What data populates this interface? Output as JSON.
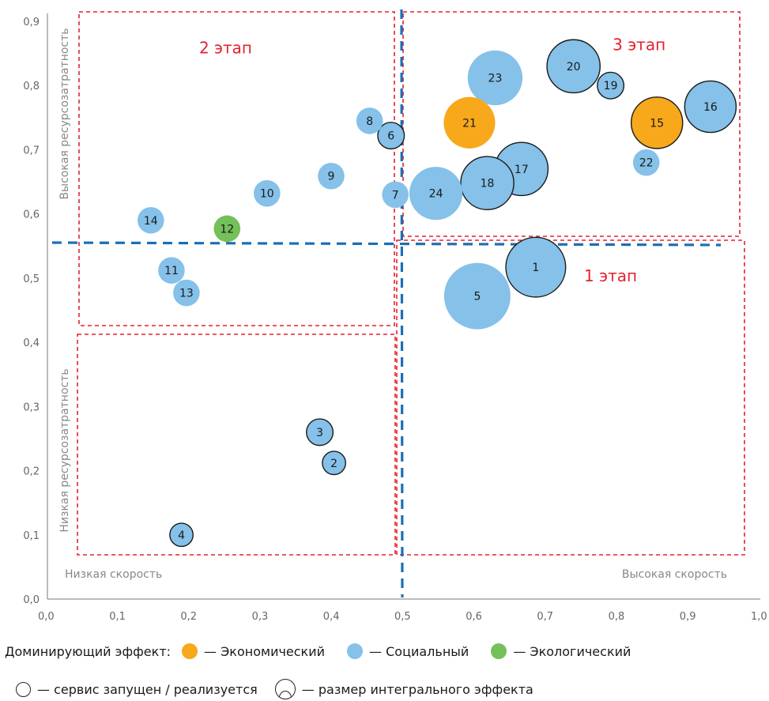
{
  "chart_data": {
    "type": "scatter",
    "title": "",
    "xlabel": "",
    "ylabel": "",
    "xlim": [
      0.0,
      1.0
    ],
    "ylim": [
      0.0,
      0.9
    ],
    "x_ticks": [
      "0,0",
      "0,1",
      "0,2",
      "0,3",
      "0,4",
      "0,5",
      "0,6",
      "0,7",
      "0,8",
      "0,9",
      "1,0"
    ],
    "y_ticks": [
      "0,0",
      "0,1",
      "0,2",
      "0,3",
      "0,4",
      "0,5",
      "0,6",
      "0,7",
      "0,8",
      "0,9"
    ],
    "grid": false,
    "colors": {
      "economic": "#f7a81b",
      "social": "#85c1e9",
      "ecological": "#74c05a",
      "stage_box": "#e5202e",
      "threshold": "#1a6fb5"
    },
    "annotations": {
      "y_high": "Высокая ресурсозатратность",
      "y_low": "Низкая ресурсозатратность",
      "x_low": "Низкая скорость",
      "x_high": "Высокая скорость"
    },
    "thresholds": {
      "x": 0.5,
      "y": 0.555
    },
    "stages": [
      {
        "label": "1 этап",
        "x": [
          0.5,
          1.0
        ],
        "y": [
          0.07,
          0.555
        ]
      },
      {
        "label": "2 этап",
        "x": [
          0.05,
          0.5
        ],
        "y": [
          0.43,
          0.9
        ]
      },
      {
        "label": "3 этап",
        "x": [
          0.5,
          1.0
        ],
        "y": [
          0.56,
          0.9
        ]
      }
    ],
    "points": [
      {
        "label": "1",
        "x": 0.685,
        "y": 0.517,
        "size": 3.6,
        "effect": "social",
        "launched": true
      },
      {
        "label": "2",
        "x": 0.402,
        "y": 0.212,
        "size": 1.4,
        "effect": "social",
        "launched": true
      },
      {
        "label": "3",
        "x": 0.382,
        "y": 0.26,
        "size": 1.6,
        "effect": "social",
        "launched": true
      },
      {
        "label": "4",
        "x": 0.188,
        "y": 0.1,
        "size": 1.4,
        "effect": "social",
        "launched": true
      },
      {
        "label": "5",
        "x": 0.603,
        "y": 0.472,
        "size": 4.0,
        "effect": "social",
        "launched": false
      },
      {
        "label": "6",
        "x": 0.482,
        "y": 0.722,
        "size": 1.6,
        "effect": "social",
        "launched": true
      },
      {
        "label": "7",
        "x": 0.488,
        "y": 0.63,
        "size": 1.6,
        "effect": "social",
        "launched": false
      },
      {
        "label": "8",
        "x": 0.452,
        "y": 0.745,
        "size": 1.6,
        "effect": "social",
        "launched": false
      },
      {
        "label": "9",
        "x": 0.398,
        "y": 0.659,
        "size": 1.6,
        "effect": "social",
        "launched": false
      },
      {
        "label": "10",
        "x": 0.308,
        "y": 0.632,
        "size": 1.6,
        "effect": "social",
        "launched": false
      },
      {
        "label": "11",
        "x": 0.174,
        "y": 0.512,
        "size": 1.6,
        "effect": "social",
        "launched": false
      },
      {
        "label": "12",
        "x": 0.252,
        "y": 0.577,
        "size": 1.6,
        "effect": "ecological",
        "launched": false
      },
      {
        "label": "13",
        "x": 0.195,
        "y": 0.477,
        "size": 1.6,
        "effect": "social",
        "launched": false
      },
      {
        "label": "14",
        "x": 0.145,
        "y": 0.59,
        "size": 1.6,
        "effect": "social",
        "launched": false
      },
      {
        "label": "15",
        "x": 0.855,
        "y": 0.742,
        "size": 3.1,
        "effect": "economic",
        "launched": true
      },
      {
        "label": "16",
        "x": 0.93,
        "y": 0.767,
        "size": 3.1,
        "effect": "social",
        "launched": true
      },
      {
        "label": "17",
        "x": 0.665,
        "y": 0.67,
        "size": 3.2,
        "effect": "social",
        "launched": true
      },
      {
        "label": "18",
        "x": 0.617,
        "y": 0.648,
        "size": 3.2,
        "effect": "social",
        "launched": true
      },
      {
        "label": "19",
        "x": 0.79,
        "y": 0.8,
        "size": 1.6,
        "effect": "social",
        "launched": true
      },
      {
        "label": "20",
        "x": 0.738,
        "y": 0.83,
        "size": 3.2,
        "effect": "social",
        "launched": true
      },
      {
        "label": "21",
        "x": 0.592,
        "y": 0.742,
        "size": 3.1,
        "effect": "economic",
        "launched": false
      },
      {
        "label": "22",
        "x": 0.84,
        "y": 0.68,
        "size": 1.6,
        "effect": "social",
        "launched": false
      },
      {
        "label": "23",
        "x": 0.628,
        "y": 0.812,
        "size": 3.3,
        "effect": "social",
        "launched": false
      },
      {
        "label": "24",
        "x": 0.545,
        "y": 0.632,
        "size": 3.2,
        "effect": "social",
        "launched": false
      }
    ]
  },
  "legend": {
    "dominant_label": "Доминирующий эффект:",
    "items": [
      {
        "label": "— Экономический",
        "effect": "economic"
      },
      {
        "label": "— Социальный",
        "effect": "social"
      },
      {
        "label": "— Экологический",
        "effect": "ecological"
      }
    ],
    "launched_label": "— сервис запущен / реализуется",
    "size_label": "— размер интегрального эффекта"
  }
}
